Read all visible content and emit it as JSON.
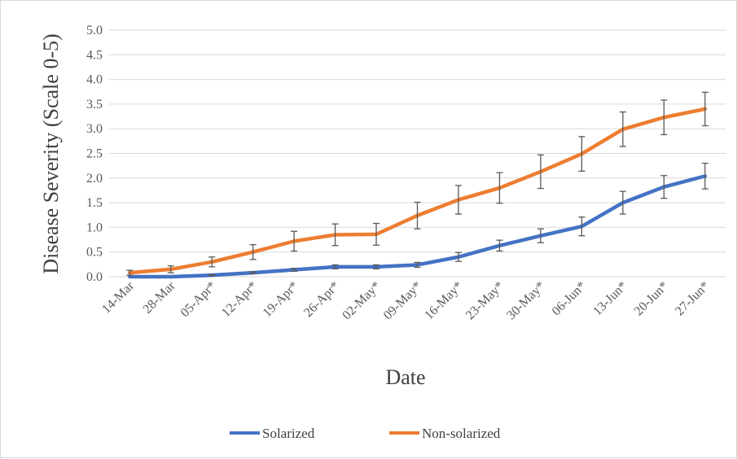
{
  "chart_data": {
    "type": "line",
    "title": "",
    "xlabel": "Date",
    "ylabel": "Disease Severity (Scale 0-5)",
    "ylim": [
      0,
      5
    ],
    "yticks": [
      "0.0",
      "0.5",
      "1.0",
      "1.5",
      "2.0",
      "2.5",
      "3.0",
      "3.5",
      "4.0",
      "4.5",
      "5.0"
    ],
    "categories": [
      "14-Mar",
      "28-Mar",
      "05-Apr*",
      "12-Apr*",
      "19-Apr*",
      "26-Apr*",
      "02-May*",
      "09-May*",
      "16-May*",
      "23-May*",
      "30-May*",
      "06-Jun*",
      "13-Jun*",
      "20-Jun*",
      "27-Jun*"
    ],
    "grid": true,
    "legend_position": "bottom",
    "series": [
      {
        "name": "Solarized",
        "color": "#4472c4",
        "values": [
          0.0,
          0.0,
          0.03,
          0.08,
          0.14,
          0.2,
          0.2,
          0.24,
          0.4,
          0.63,
          0.83,
          1.02,
          1.5,
          1.82,
          2.04
        ],
        "errors": [
          0.0,
          0.0,
          0.01,
          0.02,
          0.03,
          0.04,
          0.04,
          0.05,
          0.09,
          0.11,
          0.14,
          0.19,
          0.23,
          0.23,
          0.26
        ]
      },
      {
        "name": "Non-solarized",
        "color": "#ed7d31",
        "values": [
          0.08,
          0.15,
          0.3,
          0.5,
          0.72,
          0.85,
          0.86,
          1.24,
          1.56,
          1.8,
          2.13,
          2.49,
          2.99,
          3.23,
          3.4
        ],
        "errors": [
          0.05,
          0.07,
          0.1,
          0.15,
          0.2,
          0.22,
          0.22,
          0.27,
          0.29,
          0.31,
          0.34,
          0.35,
          0.35,
          0.35,
          0.34
        ]
      }
    ]
  }
}
